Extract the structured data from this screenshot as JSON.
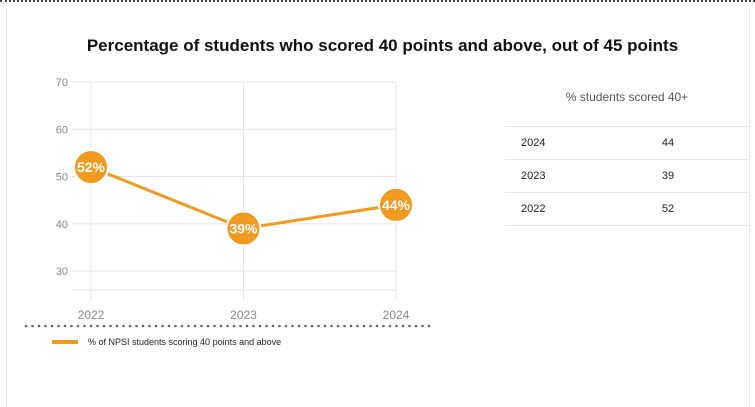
{
  "chart_data": {
    "type": "line",
    "title": "Percentage of students who scored 40 points and above, out of 45 points",
    "x": [
      "2022",
      "2023",
      "2024"
    ],
    "series": [
      {
        "name": "% of NPSI students scoring 40 points and above",
        "values": [
          52,
          39,
          44
        ],
        "data_labels": [
          "52%",
          "39%",
          "44%"
        ]
      }
    ],
    "y_ticks": [
      "70",
      "60",
      "50",
      "40",
      "30"
    ],
    "ylim": [
      26,
      70
    ],
    "grid": true,
    "legend": "bottom-left",
    "color": "#f29a1f"
  },
  "table": {
    "header": "% students scored 40+",
    "rows": [
      {
        "year": "2024",
        "value": "44"
      },
      {
        "year": "2023",
        "value": "39"
      },
      {
        "year": "2022",
        "value": "52"
      }
    ]
  }
}
